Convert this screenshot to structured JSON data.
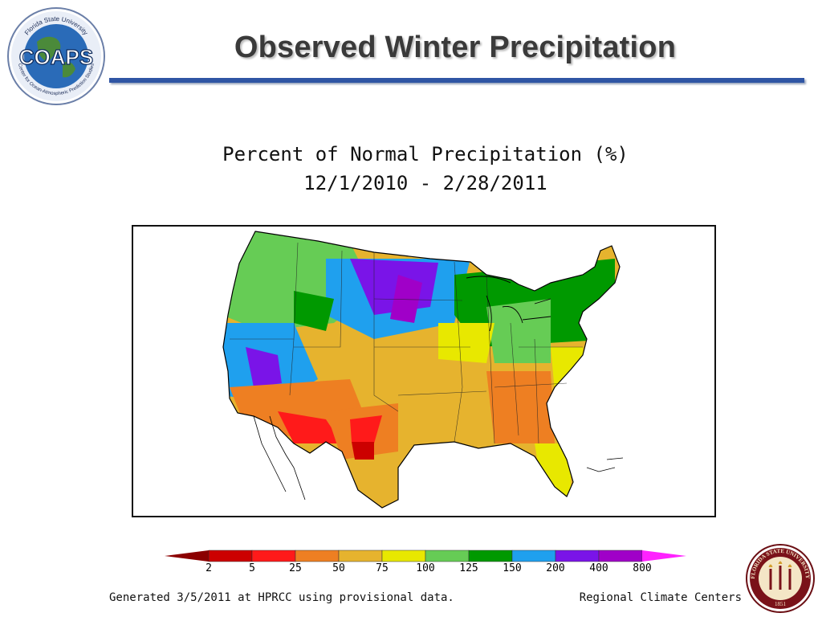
{
  "header": {
    "title": "Observed Winter Precipitation",
    "logo_text": "COAPS",
    "logo_ring_top": "Florida State University",
    "logo_ring_bottom": "Center for Ocean-Atmospheric Prediction Studies",
    "accent_color": "#2f55a4"
  },
  "map": {
    "title_line1": "Percent of Normal Precipitation (%)",
    "title_line2": "12/1/2010 - 2/28/2011",
    "region": "Contiguous United States"
  },
  "legend": {
    "breaks": [
      "2",
      "5",
      "25",
      "50",
      "75",
      "100",
      "125",
      "150",
      "200",
      "400",
      "800"
    ],
    "colors": [
      "#8b0000",
      "#cc0000",
      "#ff1a1a",
      "#ee7f22",
      "#e6b32e",
      "#e8e800",
      "#66cc55",
      "#009900",
      "#1fa0ee",
      "#7a14e8",
      "#a000c8",
      "#ff22ff"
    ]
  },
  "footer": {
    "generated": "Generated 3/5/2011 at HPRCC using provisional data.",
    "source": "Regional Climate Centers"
  },
  "seal": {
    "ring_text": "FLORIDA STATE UNIVERSITY",
    "year": "1851"
  }
}
